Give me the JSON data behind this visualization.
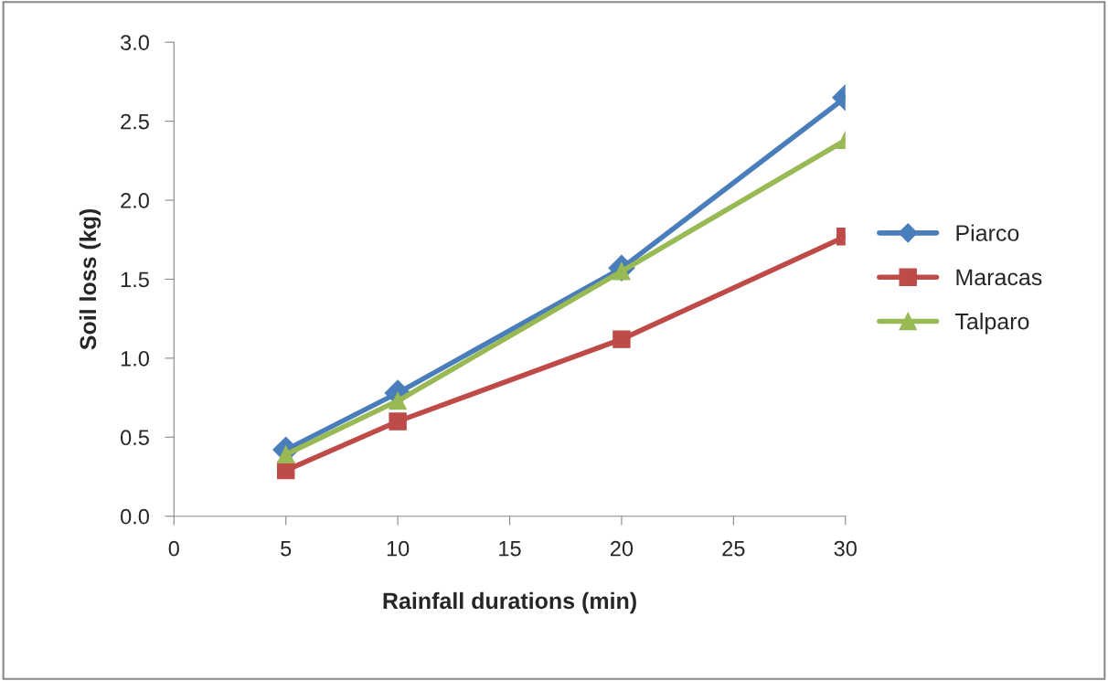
{
  "chart_data": {
    "type": "line",
    "xlabel": "Rainfall durations (min)",
    "ylabel": "Soil loss (kg)",
    "x": [
      5,
      10,
      20,
      30
    ],
    "series": [
      {
        "name": "Piarco",
        "color": "#4a7ebb",
        "marker": "diamond",
        "values": [
          0.42,
          0.78,
          1.57,
          2.65
        ]
      },
      {
        "name": "Maracas",
        "color": "#be4b48",
        "marker": "square",
        "values": [
          0.29,
          0.6,
          1.12,
          1.77
        ]
      },
      {
        "name": "Talparo",
        "color": "#98b954",
        "marker": "triangle",
        "values": [
          0.39,
          0.73,
          1.55,
          2.38
        ]
      }
    ],
    "xlim": [
      0,
      30
    ],
    "xticks": [
      0,
      5,
      10,
      15,
      20,
      25,
      30
    ],
    "ylim": [
      0,
      3.0
    ],
    "yticks": [
      {
        "value": 0,
        "label": "0.0"
      },
      {
        "value": 0.5,
        "label": "0.5"
      },
      {
        "value": 1.0,
        "label": "1.0"
      },
      {
        "value": 1.5,
        "label": "1.5"
      },
      {
        "value": 2.0,
        "label": "2.0"
      },
      {
        "value": 2.5,
        "label": "2.5"
      },
      {
        "value": 3.0,
        "label": "3.0"
      }
    ],
    "grid": false,
    "legend": "right",
    "line_style": "solid"
  }
}
